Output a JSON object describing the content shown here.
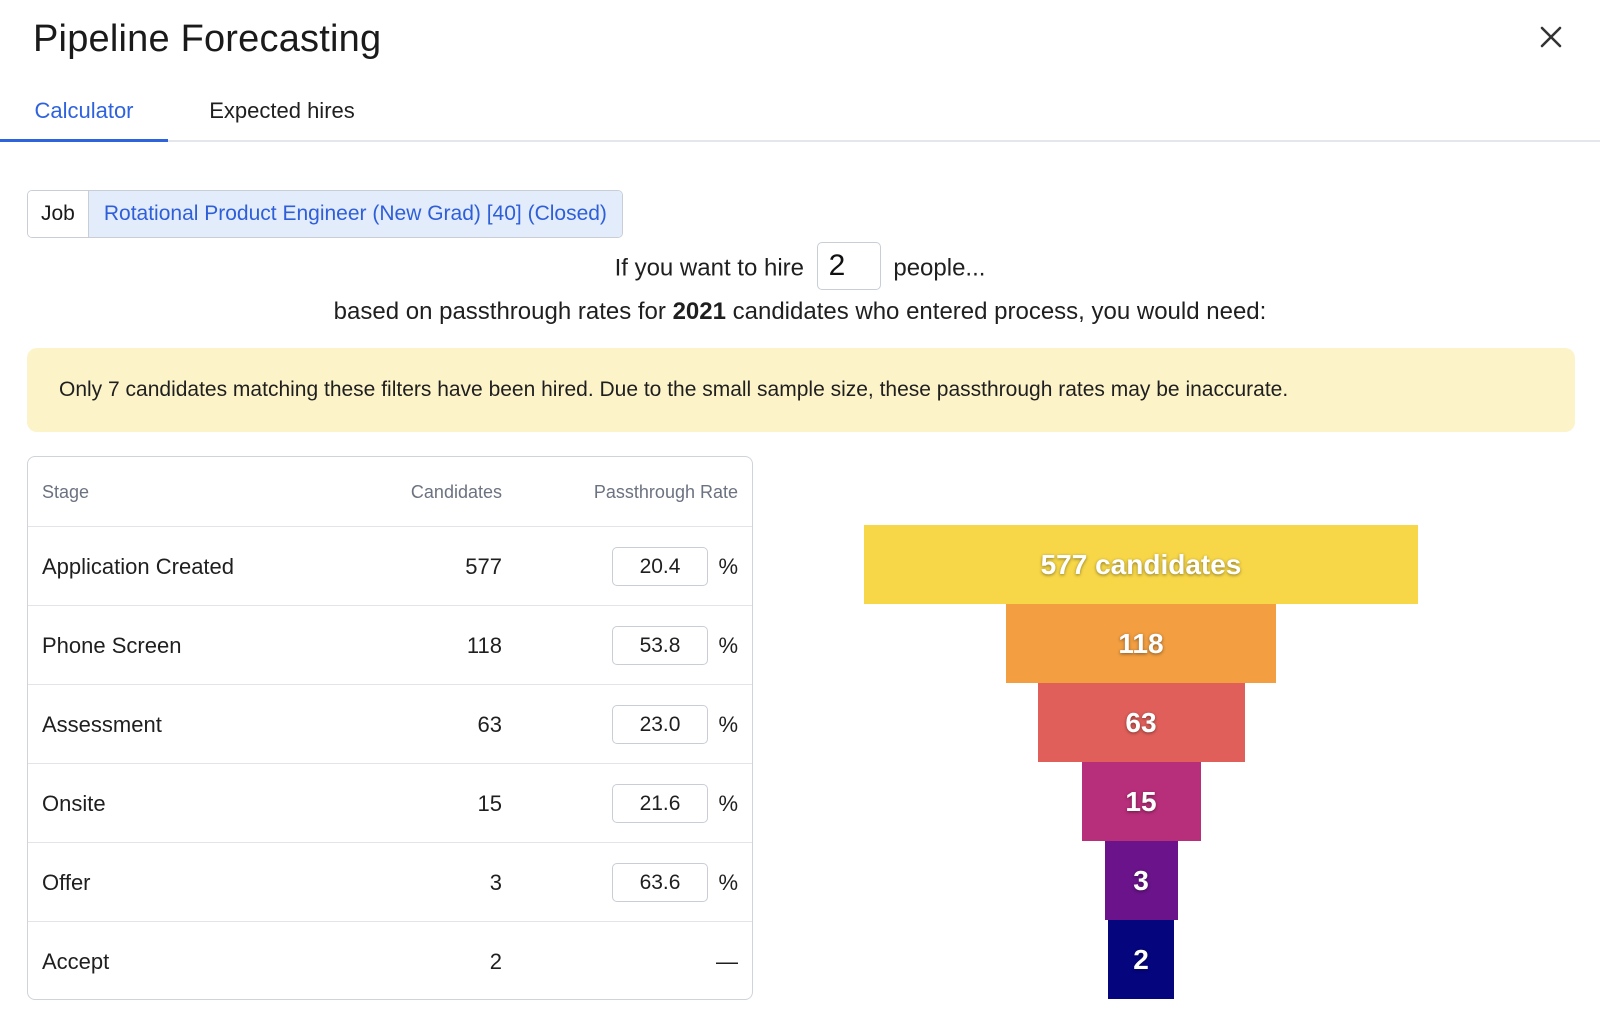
{
  "modal": {
    "title": "Pipeline Forecasting",
    "close_icon": "close-icon"
  },
  "tabs": [
    {
      "label": "Calculator",
      "active": true
    },
    {
      "label": "Expected hires",
      "active": false
    }
  ],
  "job_filter": {
    "label": "Job",
    "value": "Rotational Product Engineer (New Grad) [40] (Closed)"
  },
  "hire_goal": {
    "prefix": "If you want to hire",
    "value": "2",
    "suffix": "people..."
  },
  "basis": {
    "prefix": "based on passthrough rates for",
    "count": "2021",
    "suffix": "candidates who entered process, you would need:"
  },
  "warning": {
    "text": "Only 7 candidates matching these filters have been hired. Due to the small sample size, these passthrough rates may be inaccurate."
  },
  "table": {
    "headers": {
      "stage": "Stage",
      "candidates": "Candidates",
      "rate": "Passthrough Rate"
    },
    "percent_symbol": "%",
    "empty_rate": "—",
    "rows": [
      {
        "stage": "Application Created",
        "candidates": "577",
        "rate": "20.4"
      },
      {
        "stage": "Phone Screen",
        "candidates": "118",
        "rate": "53.8"
      },
      {
        "stage": "Assessment",
        "candidates": "63",
        "rate": "23.0"
      },
      {
        "stage": "Onsite",
        "candidates": "15",
        "rate": "21.6"
      },
      {
        "stage": "Offer",
        "candidates": "3",
        "rate": "63.6"
      },
      {
        "stage": "Accept",
        "candidates": "2",
        "rate": ""
      }
    ]
  },
  "funnel": {
    "bars": [
      {
        "label": "577 candidates",
        "value": 577,
        "color": "#f7d747"
      },
      {
        "label": "118",
        "value": 118,
        "color": "#f29e41"
      },
      {
        "label": "63",
        "value": 63,
        "color": "#e05f5a"
      },
      {
        "label": "15",
        "value": 15,
        "color": "#b72e7a"
      },
      {
        "label": "3",
        "value": 3,
        "color": "#6a138a"
      },
      {
        "label": "2",
        "value": 2,
        "color": "#05057e"
      }
    ]
  },
  "colors": {
    "accent": "#2f63dd",
    "warning_bg": "#fcf3c9",
    "job_chip_bg": "#e3ecfb"
  }
}
